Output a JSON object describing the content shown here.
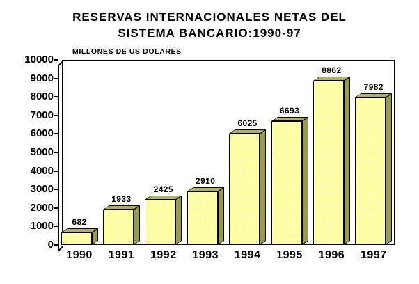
{
  "title": {
    "line1": "RESERVAS INTERNACIONALES NETAS DEL",
    "line2": "SISTEMA BANCARIO:1990-97"
  },
  "axis_note": "MILLONES DE US DOLARES",
  "chart_data": {
    "type": "bar",
    "title": "RESERVAS INTERNACIONALES NETAS DEL SISTEMA BANCARIO:1990-97",
    "subtitle": "MILLONES DE US DOLARES",
    "xlabel": "",
    "ylabel": "MILLONES DE US DOLARES",
    "categories": [
      "1990",
      "1991",
      "1992",
      "1993",
      "1994",
      "1995",
      "1996",
      "1997"
    ],
    "values": [
      682,
      1933,
      2425,
      2910,
      6025,
      6693,
      8862,
      7982
    ],
    "ylim": [
      0,
      10000
    ],
    "ytick_step": 1000,
    "yticks": [
      "10000",
      "9000",
      "8000",
      "7000",
      "6000",
      "5000",
      "4000",
      "3000",
      "2000",
      "1000",
      "0"
    ],
    "grid": false,
    "legend": false,
    "style": "3d-bar",
    "colors": {
      "bar_face": "#FFFF8C",
      "bar_dots": "#FFFFFF",
      "bar_side": "#9A9A50",
      "bar_top": "#B0B060",
      "outline": "#000000",
      "background": "#FFFFFF",
      "text": "#000000"
    }
  }
}
